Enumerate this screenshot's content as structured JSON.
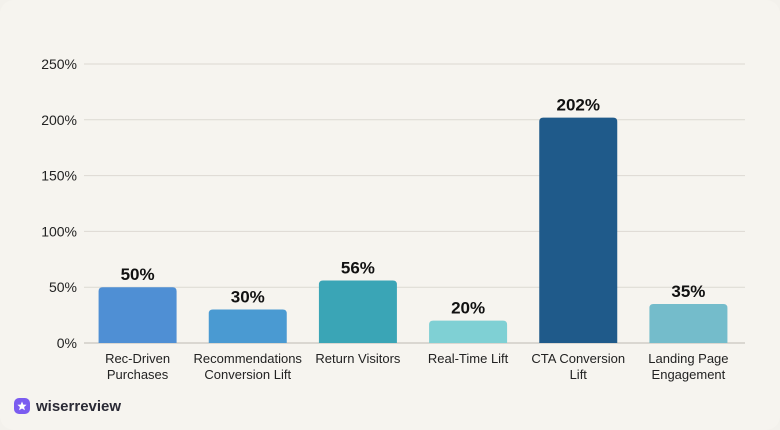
{
  "brand": {
    "name": "wiserreview",
    "icon": "star-badge-icon",
    "color": "#7b5cf0"
  },
  "chart_data": {
    "type": "bar",
    "title": "",
    "xlabel": "",
    "ylabel": "",
    "ylim": [
      0,
      250
    ],
    "yticks": [
      "0%",
      "50%",
      "100%",
      "150%",
      "200%",
      "250%"
    ],
    "ytick_values": [
      0,
      50,
      100,
      150,
      200,
      250
    ],
    "grid": true,
    "categories": [
      [
        "Rec-Driven",
        "Purchases"
      ],
      [
        "Recommendations",
        "Conversion Lift"
      ],
      [
        "Return Visitors"
      ],
      [
        "Real-Time Lift"
      ],
      [
        "CTA Conversion",
        "Lift"
      ],
      [
        "Landing Page",
        "Engagement"
      ]
    ],
    "values": [
      50,
      30,
      56,
      20,
      202,
      35
    ],
    "labels": [
      "50%",
      "30%",
      "56%",
      "20%",
      "202%",
      "35%"
    ],
    "colors": [
      "#4f8fd4",
      "#4a9ad2",
      "#3aa5b6",
      "#7fd0d4",
      "#1f5a8a",
      "#74bccb"
    ]
  }
}
